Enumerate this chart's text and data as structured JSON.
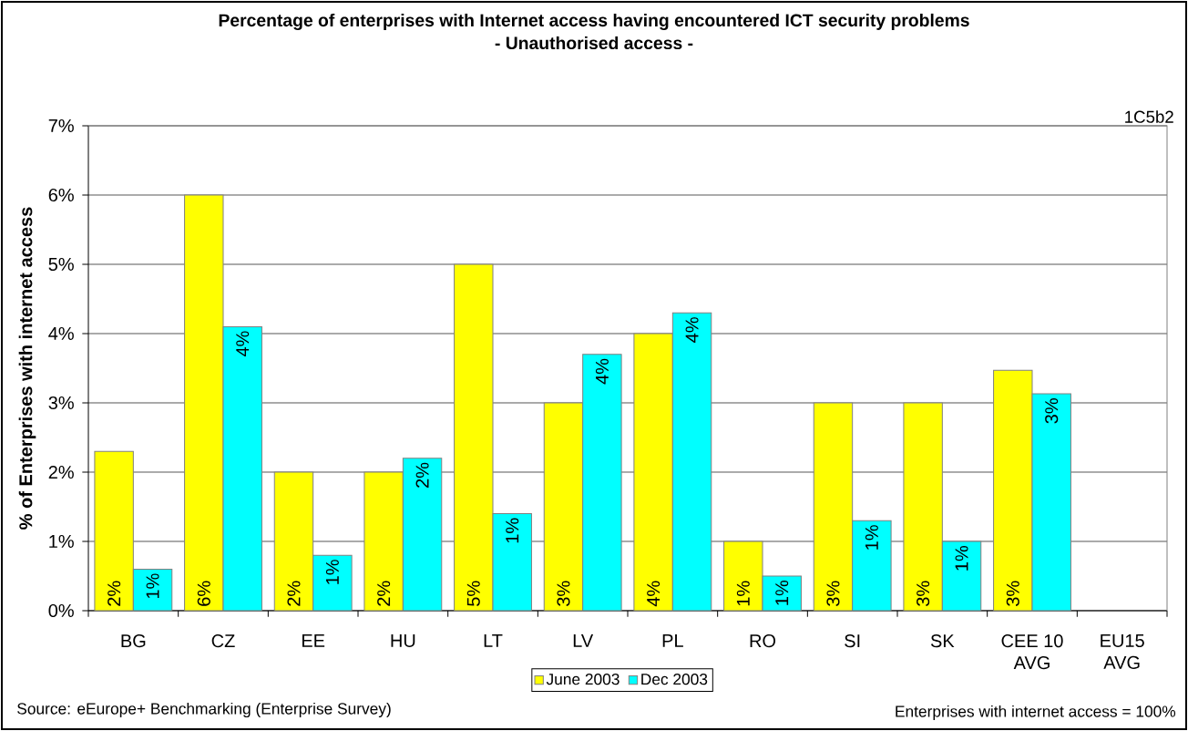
{
  "chart_data": {
    "type": "bar",
    "title": "Percentage of enterprises with Internet access having encountered ICT security problems",
    "subtitle": "- Unauthorised access -",
    "ylabel": "% of Enterprises with internet access",
    "categories": [
      "BG",
      "CZ",
      "EE",
      "HU",
      "LT",
      "LV",
      "PL",
      "RO",
      "SI",
      "SK",
      "CEE 10 AVG",
      "EU15 AVG"
    ],
    "series": [
      {
        "name": "June 2003",
        "color": "#ffff00",
        "values": [
          2.3,
          6.0,
          2.0,
          2.0,
          5.0,
          3.0,
          4.0,
          1.0,
          3.0,
          3.0,
          3.47,
          null
        ],
        "value_labels": [
          "2%",
          "6%",
          "2%",
          "2%",
          "5%",
          "3%",
          "4%",
          "1%",
          "3%",
          "3%",
          "3%",
          null
        ]
      },
      {
        "name": "Dec 2003",
        "color": "#00ffff",
        "values": [
          0.6,
          4.1,
          0.8,
          2.2,
          1.4,
          3.7,
          4.3,
          0.5,
          1.3,
          1.0,
          3.13,
          null
        ],
        "value_labels": [
          "1%",
          "4%",
          "1%",
          "2%",
          "1%",
          "4%",
          "4%",
          "1%",
          "1%",
          "1%",
          "3%",
          null
        ]
      }
    ],
    "ylim": [
      0,
      7
    ],
    "yticks": [
      {
        "value": 0,
        "label": "0%"
      },
      {
        "value": 1,
        "label": "1%"
      },
      {
        "value": 2,
        "label": "2%"
      },
      {
        "value": 3,
        "label": "3%"
      },
      {
        "value": 4,
        "label": "4%"
      },
      {
        "value": 5,
        "label": "5%"
      },
      {
        "value": 6,
        "label": "6%"
      },
      {
        "value": 7,
        "label": "7%"
      }
    ],
    "grid": "y",
    "legend": "bottom",
    "annotations": [
      "1C5b2",
      "Source: eEurope+ Benchmarking (Enterprise Survey)",
      "Enterprises with internet access = 100%"
    ]
  }
}
